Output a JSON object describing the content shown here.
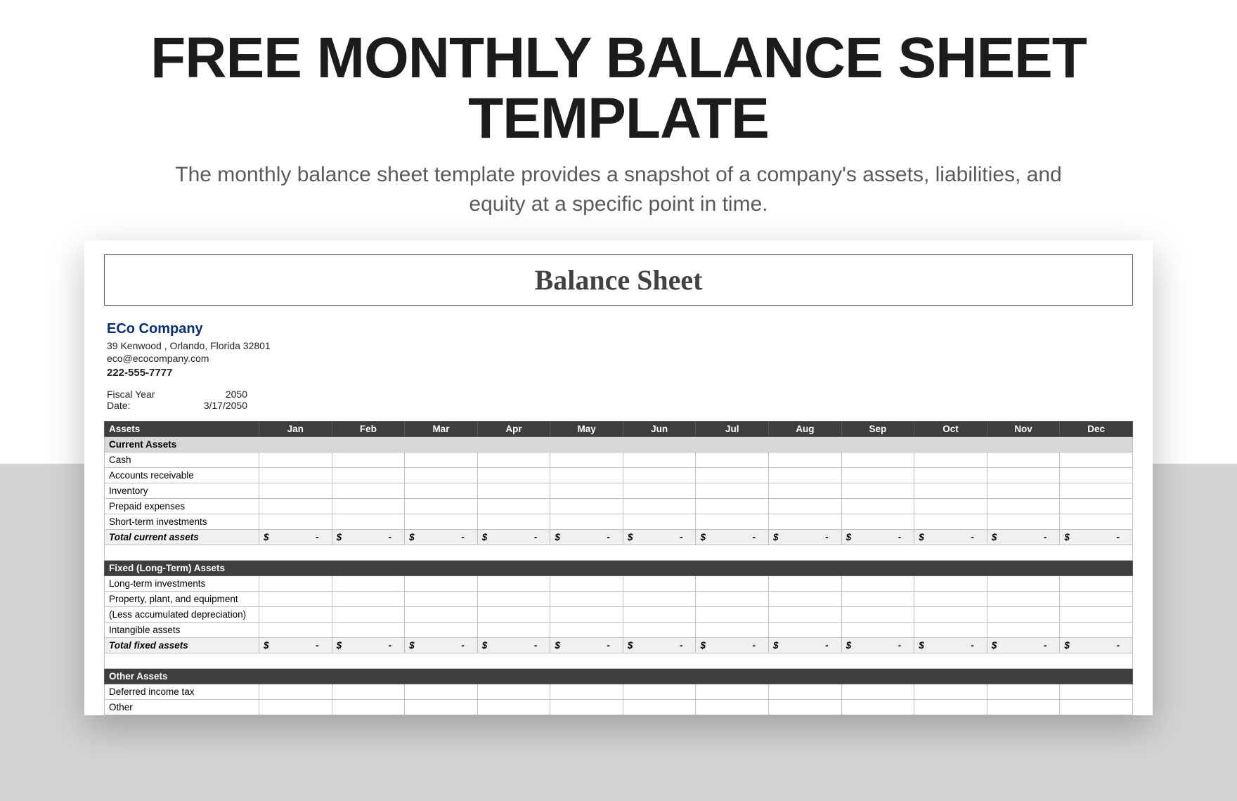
{
  "page": {
    "title": "FREE MONTHLY BALANCE SHEET TEMPLATE",
    "subtitle": "The monthly balance sheet template provides a snapshot of a company's assets, liabilities, and equity at a specific point in time."
  },
  "sheet": {
    "header_title": "Balance Sheet",
    "company": {
      "name": "ECo Company",
      "address": "39 Kenwood , Orlando, Florida 32801",
      "email": "eco@ecocompany.com",
      "phone": "222-555-7777"
    },
    "meta": {
      "fiscal_year_label": "Fiscal Year",
      "fiscal_year_value": "2050",
      "date_label": "Date:",
      "date_value": "3/17/2050"
    },
    "months": [
      "Jan",
      "Feb",
      "Mar",
      "Apr",
      "May",
      "Jun",
      "Jul",
      "Aug",
      "Sep",
      "Oct",
      "Nov",
      "Dec"
    ],
    "styling": {
      "header_dark_bg": "#3e3e3e",
      "header_dark_text": "#ffffff",
      "section_gray_bg": "#d8d8d8",
      "total_row_bg": "#f0f0f0",
      "border_color": "#bfbfbf",
      "company_name_color": "#0a2f6b",
      "page_bg": "#ffffff",
      "gray_band_bg": "#d4d4d4",
      "title_color": "#1c1c1c",
      "subtitle_color": "#5a5a5a",
      "page_title_fontsize": 82,
      "subtitle_fontsize": 30,
      "sheet_title_fontsize": 40,
      "table_fontsize": 13.5,
      "label_col_width": 220
    },
    "sections": {
      "assets_header": "Assets",
      "current_assets": {
        "title": "Current Assets",
        "rows": [
          "Cash",
          "Accounts receivable",
          "Inventory",
          "Prepaid expenses",
          "Short-term investments"
        ],
        "total_label": "Total current assets"
      },
      "fixed_assets": {
        "title": "Fixed (Long-Term) Assets",
        "rows": [
          "Long-term investments",
          "Property, plant, and equipment",
          "(Less accumulated depreciation)",
          "Intangible assets"
        ],
        "total_label": "Total fixed assets"
      },
      "other_assets": {
        "title": "Other Assets",
        "rows": [
          "Deferred income tax",
          "Other"
        ]
      }
    }
  }
}
